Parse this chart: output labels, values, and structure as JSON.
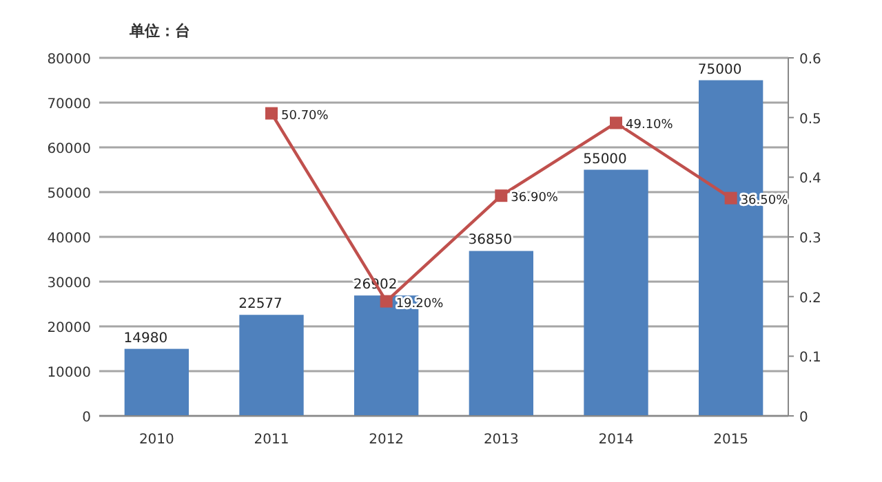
{
  "chart_data": {
    "type": "bar",
    "ylabel": "单位：台",
    "categories": [
      "2010",
      "2011",
      "2012",
      "2013",
      "2014",
      "2015"
    ],
    "series": [
      {
        "color": "#4f81bd",
        "values": [
          14980,
          22577,
          26902,
          36850,
          55000,
          75000
        ],
        "value_labels": [
          "14980",
          "22577",
          "26902",
          "36850",
          "55000",
          "75000"
        ]
      },
      {
        "type": "line",
        "axis": "y2",
        "color": "#c0504d",
        "marker": "square",
        "values": [
          null,
          0.507,
          0.192,
          0.369,
          0.491,
          0.365
        ],
        "value_labels": [
          null,
          "50.70%",
          "19.20%",
          "36.90%",
          "49.10%",
          "36.50%"
        ]
      }
    ],
    "ylim": [
      0,
      80000
    ],
    "yticks": [
      0,
      10000,
      20000,
      30000,
      40000,
      50000,
      60000,
      70000,
      80000
    ],
    "y2lim": [
      0,
      0.6
    ],
    "y2ticks": [
      0,
      0.1,
      0.2,
      0.3,
      0.4,
      0.5,
      0.6
    ],
    "grid": "y"
  }
}
